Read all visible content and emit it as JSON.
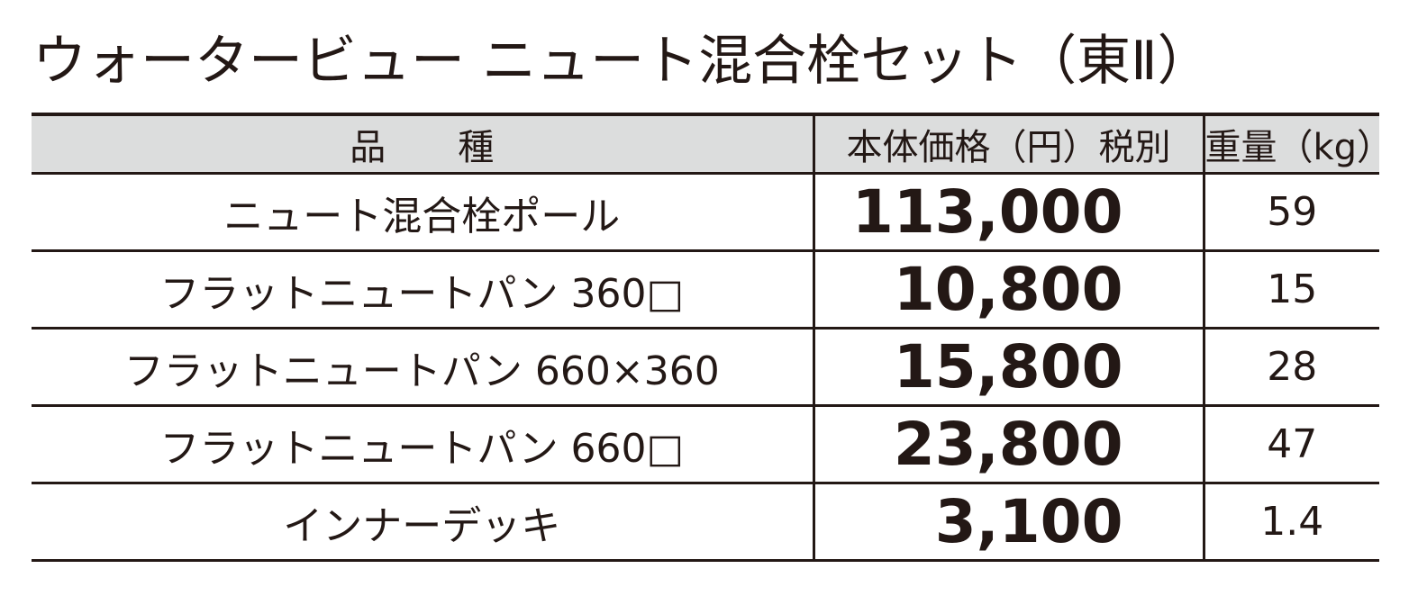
{
  "title": "ウォータービュー ニュート混合栓セット（東Ⅱ）",
  "table": {
    "header": [
      "品　　種",
      "本体価格（円）税別",
      "重量（kg）"
    ],
    "rows": [
      [
        "ニュート混合栓ポール",
        "113,000",
        "59"
      ],
      [
        "フラットニュートパン 360□",
        "10,800",
        "15"
      ],
      [
        "フラットニュートパン 660×360",
        "15,800",
        "28"
      ],
      [
        "フラットニュートパン 660□",
        "23,800",
        "47"
      ],
      [
        "インナーデッキ",
        "3,100",
        "1.4"
      ]
    ]
  }
}
